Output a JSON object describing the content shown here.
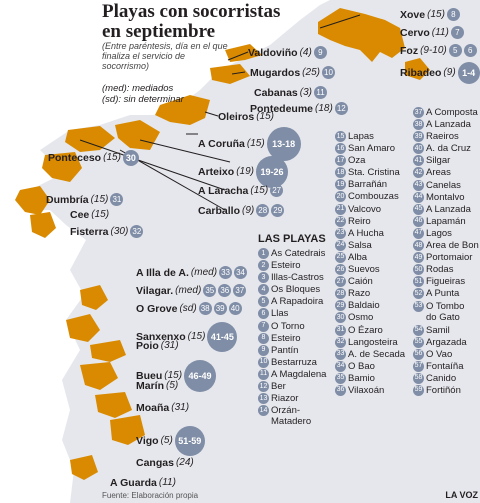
{
  "title": {
    "line1": "Playas con socorristas",
    "line2": "en septiembre",
    "note": "(Entre paréntesis, día en el que finaliza el servicio de socorrismo)",
    "legend1": "(med): mediados",
    "legend2": "(sd): sin determinar"
  },
  "places": [
    {
      "name": "Xove",
      "date": "(15)",
      "badge": "8"
    },
    {
      "name": "Cervo",
      "date": "(11)",
      "badge": "7"
    },
    {
      "name": "Foz",
      "date": "(9-10)",
      "badge": "5",
      "badge2": "6"
    },
    {
      "name": "Ribadeo",
      "date": "(9)",
      "badge": "1-4"
    },
    {
      "name": "Valdoviño",
      "date": "(4)",
      "badge": "9"
    },
    {
      "name": "Mugardos",
      "date": "(25)",
      "badge": "10"
    },
    {
      "name": "Cabanas",
      "date": "(3)",
      "badge": "11"
    },
    {
      "name": "Pontedeume",
      "date": "(18)",
      "badge": "12"
    },
    {
      "name": "Oleiros",
      "date": "(15)",
      "badge": ""
    },
    {
      "name": "A Coruña",
      "date": "(15)",
      "badge": "13-18"
    },
    {
      "name": "Arteixo",
      "date": "(19)",
      "badge": "19-26"
    },
    {
      "name": "Ponteceso",
      "date": "(15)",
      "badge": "30"
    },
    {
      "name": "A Laracha",
      "date": "(15)",
      "badge": "27"
    },
    {
      "name": "Carballo",
      "date": "(9)",
      "badge": "28",
      "badge2": "29"
    },
    {
      "name": "Dumbría",
      "date": "(15)",
      "badge": "31"
    },
    {
      "name": "Cee",
      "date": "(15)",
      "badge": ""
    },
    {
      "name": "Fisterra",
      "date": "(30)",
      "badge": "32"
    },
    {
      "name": "A Illa de A.",
      "date": "(med)",
      "badge": "33",
      "badge2": "34"
    },
    {
      "name": "Vilagar.",
      "date": "(med)",
      "badge": "35",
      "badge2": "36",
      "badge3": "37"
    },
    {
      "name": "O Grove",
      "date": "(sd)",
      "badge": "38",
      "badge2": "39",
      "badge3": "40"
    },
    {
      "name": "Sanxenxo",
      "date": "(15)",
      "badge": "41-45"
    },
    {
      "name": "Poio",
      "date": "(31)",
      "badge": ""
    },
    {
      "name": "Bueu",
      "date": "(15)",
      "badge": "46-49"
    },
    {
      "name": "Marín",
      "date": "(5)",
      "badge": ""
    },
    {
      "name": "Moaña",
      "date": "(31)",
      "badge": ""
    },
    {
      "name": "Vigo",
      "date": "(5)",
      "badge": "51-59"
    },
    {
      "name": "Cangas",
      "date": "(24)",
      "badge": ""
    },
    {
      "name": "A Guarda",
      "date": "(11)",
      "badge": ""
    }
  ],
  "beaches_heading": "LAS PLAYAS",
  "beaches": [
    {
      "n": "1",
      "name": "As Catedrais"
    },
    {
      "n": "2",
      "name": "Esteiro"
    },
    {
      "n": "3",
      "name": "Illas-Castros"
    },
    {
      "n": "4",
      "name": "Os Bloques"
    },
    {
      "n": "5",
      "name": "A Rapadoira"
    },
    {
      "n": "6",
      "name": "Llas"
    },
    {
      "n": "7",
      "name": "O Torno"
    },
    {
      "n": "8",
      "name": "Esteiro"
    },
    {
      "n": "9",
      "name": "Pantín"
    },
    {
      "n": "10",
      "name": "Bestarruza"
    },
    {
      "n": "11",
      "name": "A Magdalena"
    },
    {
      "n": "12",
      "name": "Ber"
    },
    {
      "n": "13",
      "name": "Riazor"
    },
    {
      "n": "14",
      "name": "Orzán-\nMatadero"
    },
    {
      "n": "15",
      "name": "Lapas"
    },
    {
      "n": "16",
      "name": "San Amaro"
    },
    {
      "n": "17",
      "name": "Oza"
    },
    {
      "n": "18",
      "name": "Sta. Cristina"
    },
    {
      "n": "19",
      "name": "Barrañán"
    },
    {
      "n": "20",
      "name": "Combouzas"
    },
    {
      "n": "21",
      "name": "Valcovo"
    },
    {
      "n": "22",
      "name": "Reiro"
    },
    {
      "n": "23",
      "name": "A Hucha"
    },
    {
      "n": "24",
      "name": "Salsa"
    },
    {
      "n": "25",
      "name": "Alba"
    },
    {
      "n": "26",
      "name": "Suevos"
    },
    {
      "n": "27",
      "name": "Caión"
    },
    {
      "n": "28",
      "name": "Razo"
    },
    {
      "n": "29",
      "name": "Baldaio"
    },
    {
      "n": "30",
      "name": "Osmo"
    },
    {
      "n": "31",
      "name": "O Ézaro"
    },
    {
      "n": "32",
      "name": "Langosteira"
    },
    {
      "n": "33",
      "name": "A. de Secada"
    },
    {
      "n": "34",
      "name": "O Bao"
    },
    {
      "n": "35",
      "name": "Bamio"
    },
    {
      "n": "36",
      "name": "Vilaxoán"
    },
    {
      "n": "37",
      "name": "A Composta"
    },
    {
      "n": "38",
      "name": "A Lanzada"
    },
    {
      "n": "39",
      "name": "Raeiros"
    },
    {
      "n": "40",
      "name": "A. da Cruz"
    },
    {
      "n": "41",
      "name": "Silgar"
    },
    {
      "n": "42",
      "name": "Areas"
    },
    {
      "n": "43",
      "name": "Canelas"
    },
    {
      "n": "44",
      "name": "Montalvo"
    },
    {
      "n": "45",
      "name": "A Lanzada"
    },
    {
      "n": "46",
      "name": "Lapamán"
    },
    {
      "n": "47",
      "name": "Lagos"
    },
    {
      "n": "48",
      "name": "Area de Bon"
    },
    {
      "n": "49",
      "name": "Portomaior"
    },
    {
      "n": "50",
      "name": "Rodas"
    },
    {
      "n": "51",
      "name": "Figueiras"
    },
    {
      "n": "52",
      "name": "A Punta"
    },
    {
      "n": "53",
      "name": "O Tombo\ndo Gato"
    },
    {
      "n": "54",
      "name": "Samil"
    },
    {
      "n": "55",
      "name": "Argazada"
    },
    {
      "n": "56",
      "name": "O Vao"
    },
    {
      "n": "57",
      "name": "Fontaíña"
    },
    {
      "n": "58",
      "name": "Canido"
    },
    {
      "n": "59",
      "name": "Fortiñón"
    }
  ],
  "footer": {
    "source": "Fuente: Elaboración propia",
    "brand": "LA VOZ"
  }
}
